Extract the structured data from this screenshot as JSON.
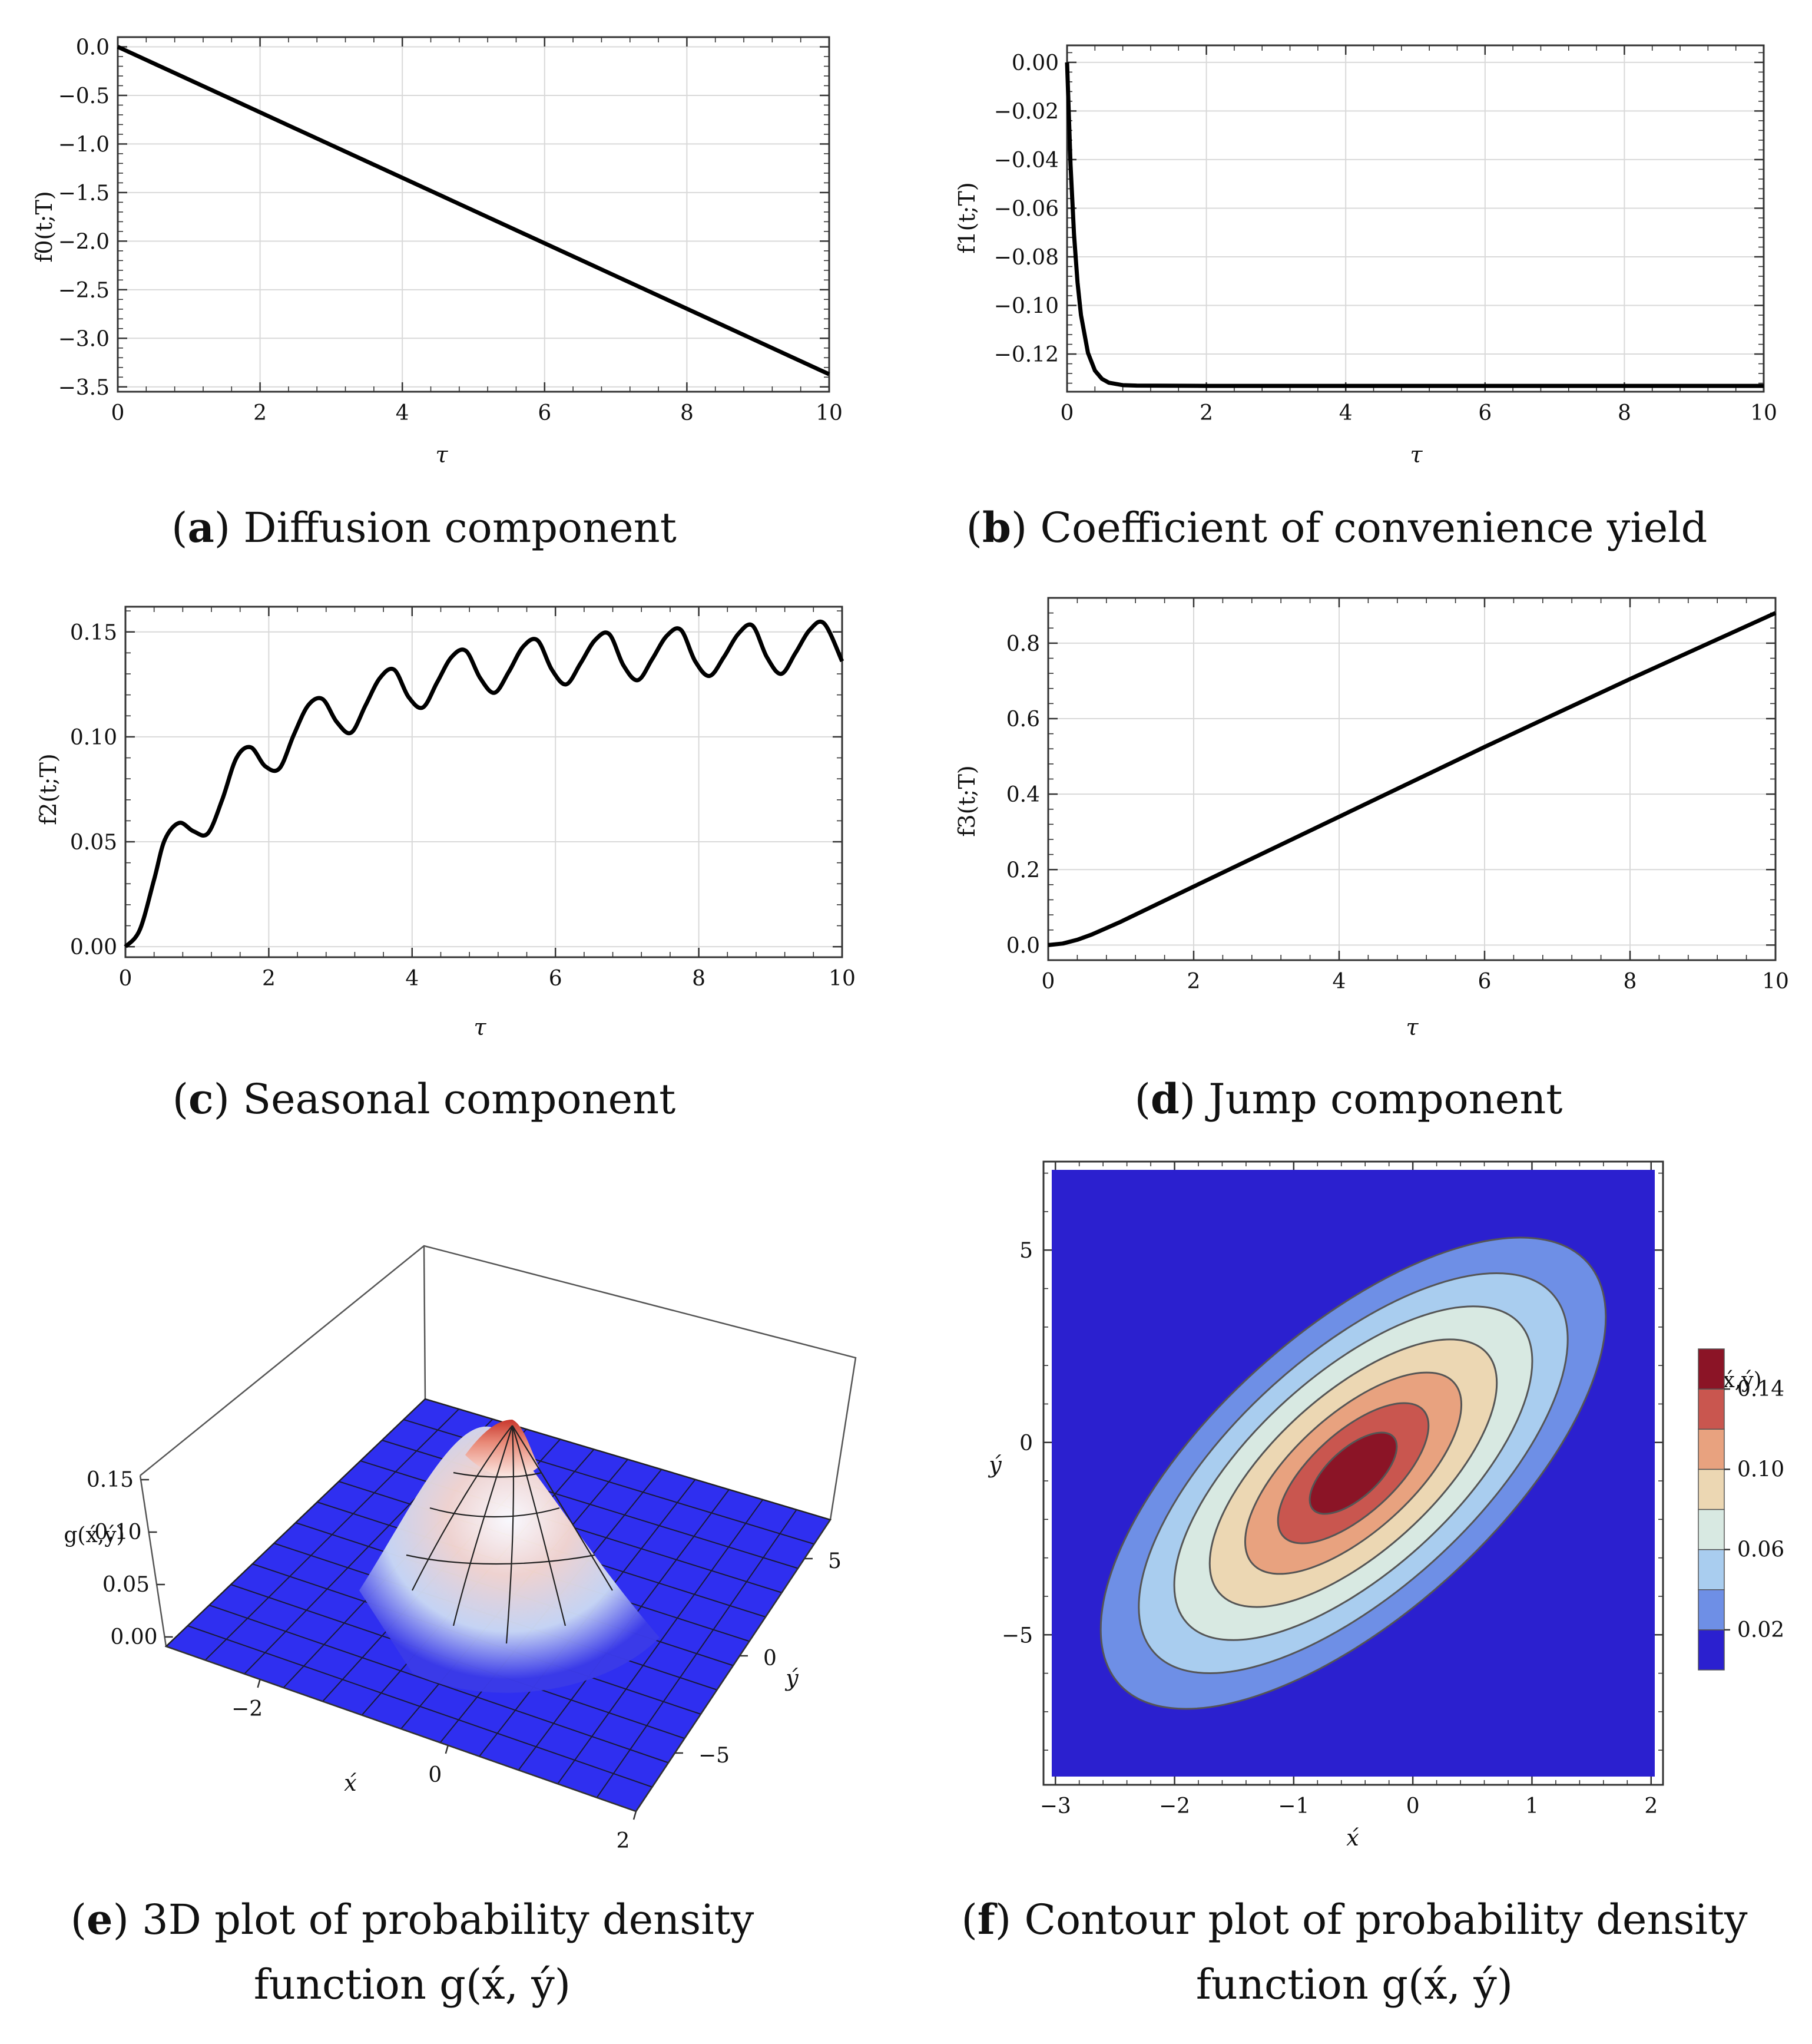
{
  "chart_data": [
    {
      "id": "a",
      "type": "line",
      "caption_letter": "a",
      "caption_text": "Diffusion component",
      "xlabel": "τ",
      "ylabel": "f0(t;T)",
      "xlim": [
        0,
        10
      ],
      "ylim": [
        -3.55,
        0.1
      ],
      "xticks": [
        0,
        2,
        4,
        6,
        8,
        10
      ],
      "xtick_labels": [
        "0",
        "2",
        "4",
        "6",
        "8",
        "10"
      ],
      "yticks": [
        0.0,
        -0.5,
        -1.0,
        -1.5,
        -2.0,
        -2.5,
        -3.0,
        -3.5
      ],
      "ytick_labels": [
        "0.0",
        "−0.5",
        "−1.0",
        "−1.5",
        "−2.0",
        "−2.5",
        "−3.0",
        "−3.5"
      ],
      "series": [
        {
          "name": "f0",
          "x": [
            0,
            10
          ],
          "y": [
            0.0,
            -3.37
          ]
        }
      ]
    },
    {
      "id": "b",
      "type": "line",
      "caption_letter": "b",
      "caption_text": "Coefficient of convenience yield",
      "xlabel": "τ",
      "ylabel": "f1(t;T)",
      "xlim": [
        0,
        10
      ],
      "ylim": [
        -0.1355,
        0.007
      ],
      "xticks": [
        0,
        2,
        4,
        6,
        8,
        10
      ],
      "xtick_labels": [
        "0",
        "2",
        "4",
        "6",
        "8",
        "10"
      ],
      "yticks": [
        0.0,
        -0.02,
        -0.04,
        -0.06,
        -0.08,
        -0.1,
        -0.12
      ],
      "ytick_labels": [
        "0.00",
        "−0.02",
        "−0.04",
        "−0.06",
        "−0.08",
        "−0.10",
        "−0.12"
      ],
      "series": [
        {
          "name": "f1",
          "x": [
            0,
            0.05,
            0.1,
            0.15,
            0.2,
            0.3,
            0.4,
            0.5,
            0.6,
            0.8,
            1.0,
            2,
            4,
            6,
            8,
            10
          ],
          "y": [
            0.0,
            -0.0421,
            -0.0708,
            -0.0905,
            -0.104,
            -0.1195,
            -0.1268,
            -0.1302,
            -0.1318,
            -0.1328,
            -0.133,
            -0.1331,
            -0.1331,
            -0.1331,
            -0.1331,
            -0.1331
          ]
        }
      ]
    },
    {
      "id": "c",
      "type": "line",
      "caption_letter": "c",
      "caption_text": "Seasonal component",
      "xlabel": "τ",
      "ylabel": "f2(t;T)",
      "xlim": [
        0,
        10
      ],
      "ylim": [
        -0.005,
        0.162
      ],
      "xticks": [
        0,
        2,
        4,
        6,
        8,
        10
      ],
      "xtick_labels": [
        "0",
        "2",
        "4",
        "6",
        "8",
        "10"
      ],
      "yticks": [
        0.0,
        0.05,
        0.1,
        0.15
      ],
      "ytick_labels": [
        "0.00",
        "0.05",
        "0.10",
        "0.15"
      ],
      "series": [
        {
          "name": "f2",
          "x": [
            0,
            0.2,
            0.4,
            0.55,
            0.75,
            0.95,
            1.15,
            1.35,
            1.55,
            1.75,
            1.95,
            2.15,
            2.35,
            2.55,
            2.75,
            2.95,
            3.15,
            3.35,
            3.55,
            3.75,
            3.95,
            4.15,
            4.35,
            4.55,
            4.75,
            4.95,
            5.15,
            5.35,
            5.55,
            5.75,
            5.95,
            6.15,
            6.35,
            6.55,
            6.75,
            6.95,
            7.15,
            7.35,
            7.55,
            7.75,
            7.95,
            8.15,
            8.35,
            8.55,
            8.75,
            8.95,
            9.15,
            9.35,
            9.55,
            9.75,
            10.0
          ],
          "y": [
            0.0,
            0.008,
            0.032,
            0.051,
            0.059,
            0.055,
            0.054,
            0.07,
            0.09,
            0.095,
            0.086,
            0.085,
            0.101,
            0.115,
            0.118,
            0.107,
            0.102,
            0.115,
            0.128,
            0.132,
            0.119,
            0.114,
            0.126,
            0.138,
            0.141,
            0.128,
            0.121,
            0.131,
            0.143,
            0.146,
            0.132,
            0.125,
            0.135,
            0.146,
            0.149,
            0.134,
            0.127,
            0.137,
            0.148,
            0.151,
            0.136,
            0.129,
            0.138,
            0.149,
            0.153,
            0.138,
            0.13,
            0.14,
            0.151,
            0.154,
            0.136
          ]
        }
      ]
    },
    {
      "id": "d",
      "type": "line",
      "caption_letter": "d",
      "caption_text": "Jump component",
      "xlabel": "τ",
      "ylabel": "f3(t;T)",
      "xlim": [
        0,
        10
      ],
      "ylim": [
        -0.04,
        0.92
      ],
      "xticks": [
        0,
        2,
        4,
        6,
        8,
        10
      ],
      "xtick_labels": [
        "0",
        "2",
        "4",
        "6",
        "8",
        "10"
      ],
      "yticks": [
        0.0,
        0.2,
        0.4,
        0.6,
        0.8
      ],
      "ytick_labels": [
        "0.0",
        "0.2",
        "0.4",
        "0.6",
        "0.8"
      ],
      "series": [
        {
          "name": "f3",
          "x": [
            0,
            0.2,
            0.4,
            0.6,
            0.8,
            1.0,
            2,
            4,
            6,
            8,
            10
          ],
          "y": [
            0.0,
            0.004,
            0.014,
            0.028,
            0.045,
            0.062,
            0.155,
            0.34,
            0.525,
            0.705,
            0.88
          ]
        }
      ]
    },
    {
      "id": "e",
      "type": "surface",
      "caption_letter": "e",
      "caption_text_line1": "3D plot of probability density",
      "caption_text_line2": "function g(x́, ý)",
      "xlabel": "x́",
      "ylabel": "ý",
      "zlabel": "g(x́,ý)",
      "xticks": [
        -2,
        0,
        2
      ],
      "xtick_labels": [
        "−2",
        "0",
        "2"
      ],
      "yticks": [
        5,
        0,
        -5
      ],
      "ytick_labels": [
        "5",
        "0",
        "−5"
      ],
      "zticks": [
        0.15,
        0.1,
        0.05,
        0.0
      ],
      "ztick_labels": [
        "0.15",
        "0.10",
        "0.05",
        "0.00"
      ],
      "xlim": [
        -3,
        2
      ],
      "ylim": [
        -8,
        7
      ],
      "peak": {
        "x": -0.5,
        "y": -0.8,
        "z": 0.155
      }
    },
    {
      "id": "f",
      "type": "contour",
      "caption_letter": "f",
      "caption_text_line1": "Contour plot of probability density",
      "caption_text_line2": "function g(x́, ý)",
      "xlabel": "x́",
      "ylabel": "ý",
      "xlim": [
        -3.1,
        2.1
      ],
      "ylim": [
        -8.9,
        7.3
      ],
      "xticks": [
        -3,
        -2,
        -1,
        0,
        1,
        2
      ],
      "xtick_labels": [
        "−3",
        "−2",
        "−1",
        "0",
        "1",
        "2"
      ],
      "yticks": [
        5,
        0,
        -5
      ],
      "ytick_labels": [
        "5",
        "0",
        "−5"
      ],
      "center": {
        "x": -0.5,
        "y": -0.8
      },
      "legend_title": "g(x́,ý)",
      "legend_ticks": [
        "0.14",
        "0.10",
        "0.06",
        "0.02"
      ],
      "levels": [
        0.02,
        0.04,
        0.06,
        0.08,
        0.1,
        0.12,
        0.14
      ],
      "colors": [
        "#2b20cf",
        "#6e8fe6",
        "#a9cdef",
        "#d8e9e2",
        "#ecd7b3",
        "#e8a27f",
        "#c9564f",
        "#8b1426"
      ]
    }
  ]
}
